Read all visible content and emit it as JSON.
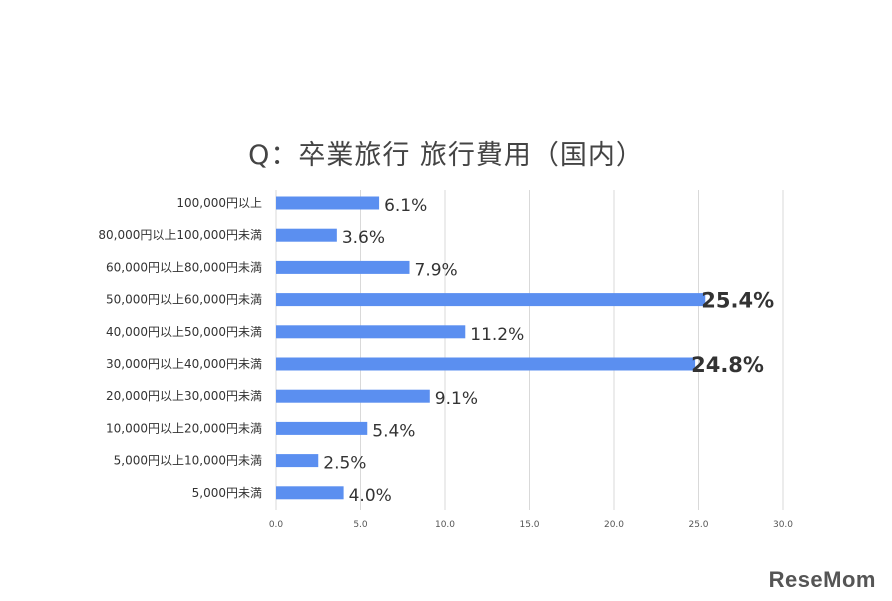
{
  "chart_data": {
    "type": "bar",
    "orientation": "horizontal",
    "title": "Q：卒業旅行 旅行費用（国内）",
    "categories": [
      "100,000円以上",
      "80,000円以上100,000円未満",
      "60,000円以上80,000円未満",
      "50,000円以上60,000円未満",
      "40,000円以上50,000円未満",
      "30,000円以上40,000円未満",
      "20,000円以上30,000円未満",
      "10,000円以上20,000円未満",
      "5,000円以上10,000円未満",
      "5,000円未満"
    ],
    "values": [
      6.1,
      3.6,
      7.9,
      25.4,
      11.2,
      24.8,
      9.1,
      5.4,
      2.5,
      4.0
    ],
    "value_labels": [
      "6.1%",
      "3.6%",
      "7.9%",
      "25.4%",
      "11.2%",
      "24.8%",
      "9.1%",
      "5.4%",
      "2.5%",
      "4.0%"
    ],
    "highlighted_indices": [
      3,
      5
    ],
    "xlim": [
      0,
      30
    ],
    "xticks": [
      "0.0",
      "5.0",
      "10.0",
      "15.0",
      "20.0",
      "25.0",
      "30.0"
    ],
    "xlabel": "",
    "ylabel": "",
    "grid": "vertical",
    "legend": "none",
    "colors": {
      "bar": "#5b8ff0",
      "highlight_text": "#c00000",
      "label_text": "#333333"
    }
  },
  "watermark": {
    "text": "ReseMom"
  }
}
